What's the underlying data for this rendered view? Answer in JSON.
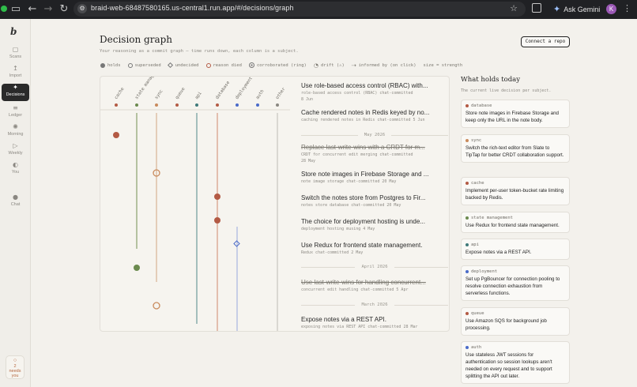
{
  "browser": {
    "url": "braid-web-68487580165.us-central1.run.app/#/decisions/graph",
    "gemini_label": "Ask Gemini",
    "avatar_initial": "K"
  },
  "rail": {
    "logo": "b",
    "items": [
      {
        "label": "Scans",
        "icon": "scan-icon"
      },
      {
        "label": "Import",
        "icon": "import-icon"
      },
      {
        "label": "Decisions",
        "icon": "decisions-icon",
        "active": true
      },
      {
        "label": "Ledger",
        "icon": "ledger-icon"
      },
      {
        "label": "Morning",
        "icon": "morning-icon"
      },
      {
        "label": "Weekly",
        "icon": "weekly-icon"
      },
      {
        "label": "You",
        "icon": "you-icon"
      },
      {
        "label": "Chat",
        "icon": "chat-icon"
      }
    ],
    "needs_count": "2",
    "needs_label_1": "needs",
    "needs_label_2": "you"
  },
  "header": {
    "title": "Decision graph",
    "subtitle": "Your reasoning as a commit graph — time runs down, each column is a subject.",
    "connect_button": "Connect a repo"
  },
  "legend": {
    "holds": "holds",
    "superseded": "superseded",
    "undecided": "undecided",
    "reason_died": "reason died",
    "corroborated": "corroborated (ring)",
    "drift": "drift (⚠)",
    "informed_by": "informed by (on click)",
    "size": "size = strength"
  },
  "columns": [
    {
      "name": "cache",
      "color": "#b35a44"
    },
    {
      "name": "state management",
      "color": "#6b8a4e"
    },
    {
      "name": "sync",
      "color": "#c98a5c"
    },
    {
      "name": "queue",
      "color": "#b35a44"
    },
    {
      "name": "api",
      "color": "#3f7a7a"
    },
    {
      "name": "database",
      "color": "#b35a44"
    },
    {
      "name": "deployment",
      "color": "#4a6bc9"
    },
    {
      "name": "auth",
      "color": "#4a6bc9"
    },
    {
      "name": "other",
      "color": "#8a8781"
    }
  ],
  "feed": {
    "entries": [
      {
        "title": "Use role-based access control (RBAC) with...",
        "meta": "role-based access control (RBAC) chat-committed",
        "date": "8 Jun",
        "struck": false
      },
      {
        "title": "Cache rendered notes in Redis keyed by no...",
        "meta": "caching rendered notes in Redis chat-committed 5 Jun",
        "date": "",
        "struck": false
      },
      {
        "title": "Replace last-write-wins with a CRDT for m...",
        "meta": "CRDT for concurrent edit merging chat-committed",
        "date": "28 May",
        "struck": true
      },
      {
        "title": "Store note images in Firebase Storage and ...",
        "meta": "note image storage chat-committed 20 May",
        "date": "",
        "struck": false
      },
      {
        "title": "Switch the notes store from Postgres to Fir...",
        "meta": "notes store database chat-committed 20 May",
        "date": "",
        "struck": false
      },
      {
        "title": "The choice for deployment hosting is unde...",
        "meta": "deployment hosting musing 4 May",
        "date": "",
        "struck": false
      },
      {
        "title": "Use Redux for frontend state management.",
        "meta": "Redux chat-committed 2 May",
        "date": "",
        "struck": false
      },
      {
        "title": "Use last-write-wins for handling concurrent...",
        "meta": "concurrent edit handling chat-committed 5 Apr",
        "date": "",
        "struck": true
      },
      {
        "title": "Expose notes via a REST API.",
        "meta": "exposing notes via REST API chat-committed 28 Mar",
        "date": "",
        "struck": false
      }
    ],
    "months": [
      "May 2026",
      "April 2026",
      "March 2026"
    ]
  },
  "holds": {
    "title": "What holds today",
    "subtitle": "The current live decision per subject.",
    "cards": [
      {
        "subject": "database",
        "color": "#b35a44",
        "text": "Store note images in Firebase Storage and keep only the URL in the note body."
      },
      {
        "subject": "sync",
        "color": "#c98a5c",
        "text": "Switch the rich-text editor from Slate to TipTap for better CRDT collaboration support."
      },
      {
        "subject": "cache",
        "color": "#b35a44",
        "text": "Implement per-user token-bucket rate limiting backed by Redis."
      },
      {
        "subject": "state management",
        "color": "#6b8a4e",
        "text": "Use Redux for frontend state management."
      },
      {
        "subject": "api",
        "color": "#3f7a7a",
        "text": "Expose notes via a REST API."
      },
      {
        "subject": "deployment",
        "color": "#4a6bc9",
        "text": "Set up PgBouncer for connection pooling to resolve connection exhaustion from serverless functions."
      },
      {
        "subject": "queue",
        "color": "#b35a44",
        "text": "Use Amazon SQS for background job processing."
      },
      {
        "subject": "auth",
        "color": "#4a6bc9",
        "text": "Use stateless JWT sessions for authentication so session lookups aren't needed on every request and to support splitting the API out later."
      }
    ]
  }
}
